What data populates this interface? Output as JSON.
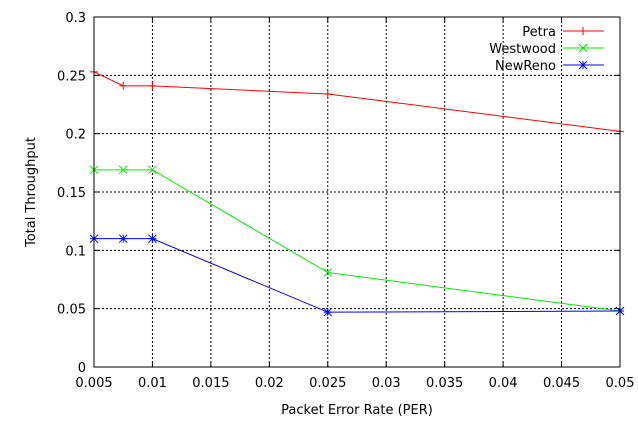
{
  "chart_data": {
    "type": "line",
    "title": "",
    "xlabel": "Packet Error Rate (PER)",
    "ylabel": "Total Throughput",
    "xlim": [
      0.005,
      0.05
    ],
    "ylim": [
      0,
      0.3
    ],
    "grid": true,
    "legend_position": "top-right",
    "x_tick_labels": [
      "0.005",
      "0.01",
      "0.015",
      "0.02",
      "0.025",
      "0.03",
      "0.035",
      "0.04",
      "0.045",
      "0.05"
    ],
    "y_ticks": [
      0,
      0.05,
      0.1,
      0.15,
      0.2,
      0.25,
      0.3
    ],
    "y_tick_labels": [
      "0",
      "0.05",
      "0.1",
      "0.15",
      "0.2",
      "0.25",
      "0.3"
    ],
    "series": [
      {
        "name": "Petra",
        "color": "#ff0000",
        "marker": "plus",
        "x": [
          0.005,
          0.0075,
          0.01,
          0.025,
          0.05
        ],
        "y": [
          0.253,
          0.241,
          0.241,
          0.234,
          0.202
        ]
      },
      {
        "name": "Westwood",
        "color": "#00ee00",
        "marker": "cross",
        "x": [
          0.005,
          0.0075,
          0.01,
          0.025,
          0.05
        ],
        "y": [
          0.169,
          0.169,
          0.169,
          0.081,
          0.048
        ]
      },
      {
        "name": "NewReno",
        "color": "#0000ff",
        "marker": "star",
        "x": [
          0.005,
          0.0075,
          0.01,
          0.025,
          0.05
        ],
        "y": [
          0.11,
          0.11,
          0.11,
          0.047,
          0.048
        ]
      }
    ]
  }
}
